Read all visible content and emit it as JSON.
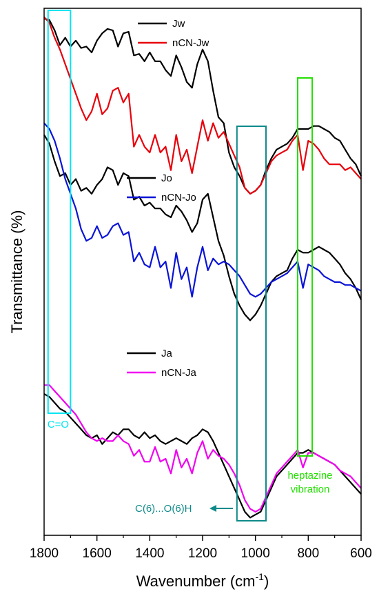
{
  "colors": {
    "black": "#000000",
    "red": "#e8000b",
    "blue": "#0a14d6",
    "magenta": "#f000f0",
    "cyan": "#00e5f0",
    "teal": "#0f8a8a",
    "green": "#22e000"
  },
  "chart_data": {
    "type": "line",
    "xlabel_main": "Wavenumber (cm",
    "xlabel_sup": "-1",
    "xlabel_end": ")",
    "ylabel": "Transmittance (%)",
    "xlim": [
      1800,
      600
    ],
    "x_reversed": true,
    "y_ticks_shown": false,
    "xticks": [
      "1800",
      "1600",
      "1400",
      "1200",
      "1000",
      "800",
      "600"
    ],
    "xtick_values": [
      1800,
      1600,
      1400,
      1200,
      1000,
      800,
      600
    ],
    "legend_groups": [
      {
        "entries": [
          {
            "name": "Jw",
            "color": "#000000"
          },
          {
            "name": "nCN-Jw",
            "color": "#e8000b"
          }
        ]
      },
      {
        "entries": [
          {
            "name": "Jo",
            "color": "#000000"
          },
          {
            "name": "nCN-Jo",
            "color": "#0a14d6"
          }
        ]
      },
      {
        "entries": [
          {
            "name": "Ja",
            "color": "#000000"
          },
          {
            "name": "nCN-Ja",
            "color": "#f000f0"
          }
        ]
      }
    ],
    "series": [
      {
        "name": "Jw",
        "color": "#000000",
        "x": [
          1800,
          1780,
          1760,
          1740,
          1720,
          1700,
          1680,
          1660,
          1640,
          1620,
          1600,
          1580,
          1560,
          1540,
          1520,
          1500,
          1480,
          1460,
          1440,
          1420,
          1400,
          1380,
          1360,
          1340,
          1320,
          1300,
          1280,
          1260,
          1240,
          1220,
          1200,
          1180,
          1160,
          1140,
          1120,
          1100,
          1080,
          1060,
          1040,
          1020,
          1000,
          980,
          960,
          940,
          920,
          900,
          880,
          860,
          840,
          820,
          800,
          780,
          760,
          740,
          720,
          700,
          680,
          660,
          640,
          620,
          600
        ],
        "y": [
          97.5,
          97,
          93.5,
          88.5,
          91,
          88,
          90,
          87.5,
          88,
          86,
          90,
          92.5,
          94,
          93.5,
          88,
          92.5,
          93,
          85,
          85.5,
          83,
          86,
          83,
          83,
          80,
          78,
          85,
          81,
          76,
          74,
          82,
          87,
          83,
          73,
          64,
          62,
          52,
          47,
          44,
          40,
          38,
          39,
          41,
          46,
          50,
          53,
          54,
          55,
          57,
          60,
          60,
          60,
          61,
          61,
          60,
          59,
          57,
          56,
          53,
          50,
          48,
          44
        ]
      },
      {
        "name": "nCN-Jw",
        "color": "#e8000b",
        "x": [
          1800,
          1780,
          1760,
          1740,
          1720,
          1700,
          1680,
          1660,
          1640,
          1620,
          1600,
          1580,
          1560,
          1540,
          1520,
          1500,
          1480,
          1460,
          1440,
          1420,
          1400,
          1380,
          1360,
          1340,
          1320,
          1300,
          1280,
          1260,
          1240,
          1220,
          1200,
          1180,
          1160,
          1140,
          1120,
          1100,
          1080,
          1060,
          1040,
          1020,
          1000,
          980,
          960,
          940,
          920,
          900,
          880,
          860,
          840,
          820,
          800,
          780,
          760,
          740,
          720,
          700,
          680,
          660,
          640,
          620,
          600
        ],
        "y": [
          98,
          96,
          91,
          87,
          82,
          77,
          72,
          67,
          63,
          66,
          72,
          65,
          67,
          73,
          74,
          69,
          72,
          54,
          58,
          54,
          52,
          58,
          52,
          54,
          46,
          58,
          49,
          53,
          45,
          54,
          63,
          56,
          62,
          57,
          59,
          55,
          51,
          47,
          40,
          38,
          39,
          41,
          45,
          49,
          51,
          52,
          53,
          56,
          58,
          46,
          56,
          55,
          53,
          50,
          48,
          48,
          48,
          46,
          47,
          45,
          43
        ]
      },
      {
        "name": "Jo",
        "color": "#000000",
        "x": [
          1800,
          1780,
          1760,
          1740,
          1720,
          1700,
          1680,
          1660,
          1640,
          1620,
          1600,
          1580,
          1560,
          1540,
          1520,
          1500,
          1480,
          1460,
          1440,
          1420,
          1400,
          1380,
          1360,
          1340,
          1320,
          1300,
          1280,
          1260,
          1240,
          1220,
          1200,
          1180,
          1160,
          1140,
          1120,
          1100,
          1080,
          1060,
          1040,
          1020,
          1000,
          980,
          960,
          940,
          920,
          900,
          880,
          860,
          840,
          820,
          800,
          780,
          760,
          740,
          720,
          700,
          680,
          660,
          640,
          620,
          600
        ],
        "y": [
          58,
          55,
          49,
          44,
          45,
          41,
          43,
          39,
          40,
          38,
          41,
          43,
          47,
          46,
          41,
          45,
          44,
          36,
          37,
          34,
          35,
          33,
          33,
          31,
          30,
          34,
          32,
          29,
          25,
          28,
          36,
          38,
          30,
          22,
          17,
          10,
          4,
          0,
          -3,
          -5,
          -3,
          0,
          4,
          8,
          10,
          11,
          12,
          16,
          19,
          18,
          18,
          19,
          20,
          19,
          18,
          16,
          14,
          11,
          9,
          6,
          2
        ]
      },
      {
        "name": "nCN-Jo",
        "color": "#0a14d6",
        "x": [
          1800,
          1780,
          1760,
          1740,
          1720,
          1700,
          1680,
          1660,
          1640,
          1620,
          1600,
          1580,
          1560,
          1540,
          1520,
          1500,
          1480,
          1460,
          1440,
          1420,
          1400,
          1380,
          1360,
          1340,
          1320,
          1300,
          1280,
          1260,
          1240,
          1220,
          1200,
          1180,
          1160,
          1140,
          1120,
          1100,
          1080,
          1060,
          1040,
          1020,
          1000,
          980,
          960,
          940,
          920,
          900,
          880,
          860,
          840,
          820,
          800,
          780,
          760,
          740,
          720,
          700,
          680,
          660,
          640,
          620,
          600
        ],
        "y": [
          62,
          60,
          56,
          50,
          43,
          38,
          33,
          26,
          22,
          23,
          27,
          23,
          24,
          27,
          28,
          24,
          25,
          15,
          18,
          14,
          13,
          20,
          13,
          15,
          6,
          18,
          9,
          13,
          3,
          13,
          20,
          12,
          16,
          14,
          15,
          14,
          12,
          10,
          7,
          4,
          3,
          4,
          6,
          8,
          9,
          10,
          11,
          13,
          15,
          6,
          14,
          13,
          12,
          10,
          9,
          8,
          8,
          7,
          7,
          6,
          5
        ]
      },
      {
        "name": "Ja",
        "color": "#000000",
        "x": [
          1800,
          1780,
          1760,
          1740,
          1720,
          1700,
          1680,
          1660,
          1640,
          1620,
          1600,
          1580,
          1560,
          1540,
          1520,
          1500,
          1480,
          1460,
          1440,
          1420,
          1400,
          1380,
          1360,
          1340,
          1320,
          1300,
          1280,
          1260,
          1240,
          1220,
          1200,
          1180,
          1160,
          1140,
          1120,
          1100,
          1080,
          1060,
          1040,
          1020,
          1000,
          980,
          960,
          940,
          920,
          900,
          880,
          860,
          840,
          820,
          800,
          780,
          760,
          740,
          720,
          700,
          680,
          660,
          640,
          620,
          600
        ],
        "y": [
          -30,
          -31,
          -33,
          -35,
          -36,
          -38,
          -40,
          -42,
          -44,
          -45,
          -44,
          -47,
          -45,
          -43,
          -44,
          -42,
          -42,
          -44,
          -45,
          -43,
          -45,
          -44,
          -46,
          -47,
          -46,
          -45,
          -46,
          -47,
          -45,
          -44,
          -42,
          -43,
          -46,
          -50,
          -54,
          -58,
          -62,
          -66,
          -70,
          -72,
          -71,
          -70,
          -66,
          -62,
          -58,
          -56,
          -54,
          -52,
          -50,
          -50,
          -49,
          -50,
          -51,
          -52,
          -53,
          -54,
          -56,
          -58,
          -60,
          -62,
          -64
        ]
      },
      {
        "name": "nCN-Ja",
        "color": "#f000f0",
        "x": [
          1800,
          1780,
          1760,
          1740,
          1720,
          1700,
          1680,
          1660,
          1640,
          1620,
          1600,
          1580,
          1560,
          1540,
          1520,
          1500,
          1480,
          1460,
          1440,
          1420,
          1400,
          1380,
          1360,
          1340,
          1320,
          1300,
          1280,
          1260,
          1240,
          1220,
          1200,
          1180,
          1160,
          1140,
          1120,
          1100,
          1080,
          1060,
          1040,
          1020,
          1000,
          980,
          960,
          940,
          920,
          900,
          880,
          860,
          840,
          820,
          800,
          780,
          760,
          740,
          720,
          700,
          680,
          660,
          640,
          620,
          600
        ],
        "y": [
          -27,
          -27,
          -29,
          -31,
          -33,
          -35,
          -37,
          -40,
          -43,
          -45,
          -46,
          -45,
          -46,
          -46,
          -44,
          -46,
          -47,
          -51,
          -49,
          -53,
          -53,
          -48,
          -53,
          -52,
          -57,
          -49,
          -55,
          -52,
          -57,
          -50,
          -46,
          -52,
          -49,
          -51,
          -52,
          -54,
          -57,
          -61,
          -66,
          -69,
          -70,
          -69,
          -65,
          -61,
          -57,
          -55,
          -53,
          -51,
          -49,
          -55,
          -50,
          -50,
          -51,
          -52,
          -53,
          -54,
          -56,
          -57,
          -58,
          -60,
          -62
        ]
      }
    ],
    "ylim": [
      -78,
      101
    ],
    "annotations": [
      {
        "label": "C=O",
        "color": "#00e5f0",
        "x_range": [
          1785,
          1700
        ]
      },
      {
        "label": "C(6)...O(6)H",
        "color": "#0f8a8a",
        "x_range": [
          1070,
          960
        ]
      },
      {
        "label_lines": [
          "heptazine",
          "vibration"
        ],
        "color": "#22e000",
        "x_range": [
          840,
          785
        ]
      }
    ]
  }
}
